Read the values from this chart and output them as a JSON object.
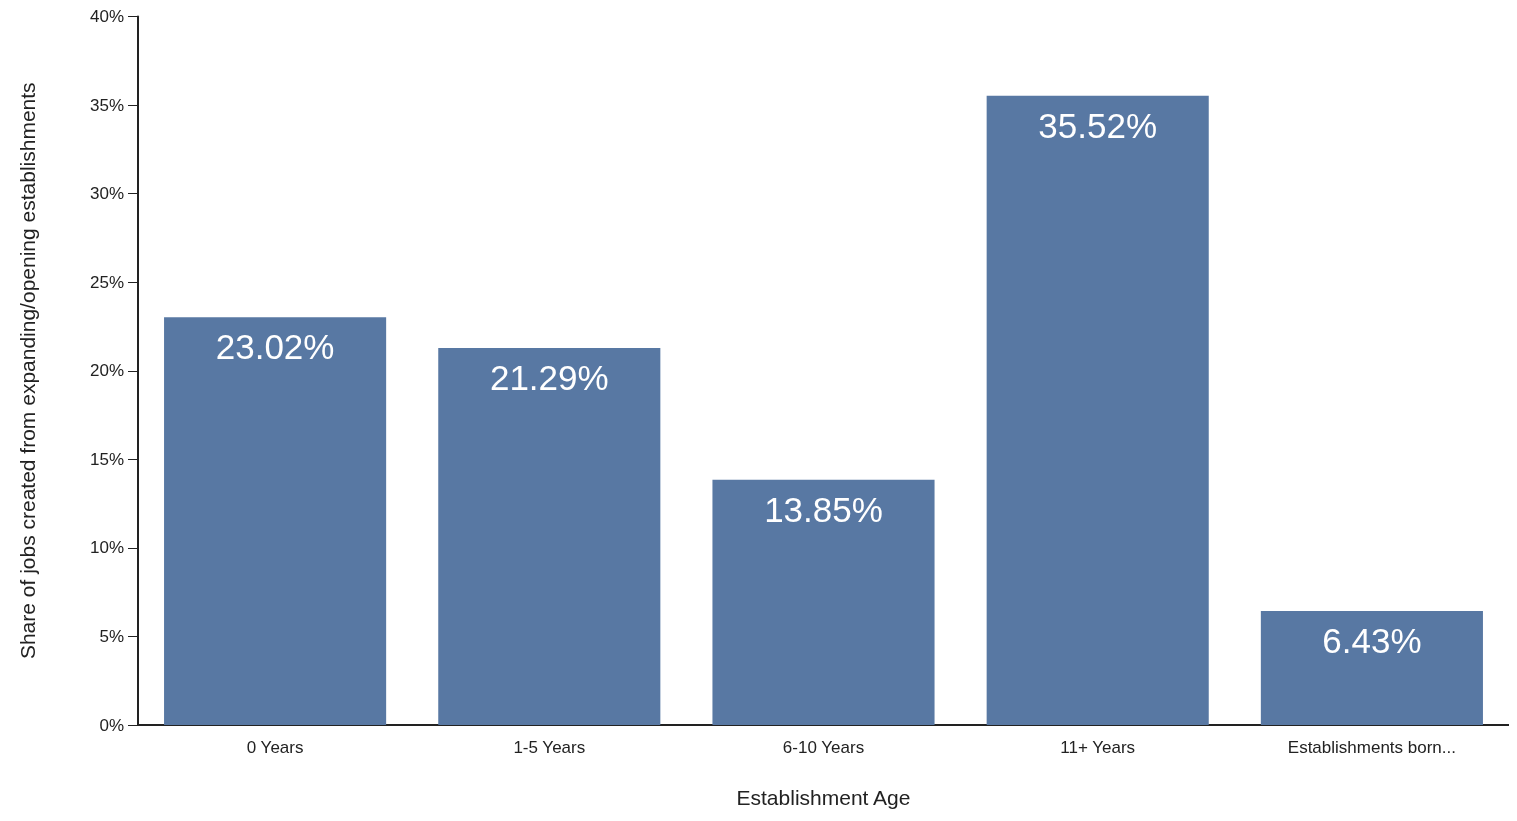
{
  "chart_data": {
    "type": "bar",
    "xlabel": "Establishment Age",
    "ylabel": "Share of jobs created from expanding/opening establishments",
    "categories": [
      "0 Years",
      "1-5 Years",
      "6-10 Years",
      "11+ Years",
      "Establishments born..."
    ],
    "values": [
      23.02,
      21.29,
      13.85,
      35.52,
      6.43
    ],
    "value_labels": [
      "23.02%",
      "21.29%",
      "13.85%",
      "35.52%",
      "6.43%"
    ],
    "color": "#5878a3",
    "ylim": [
      0,
      40
    ],
    "yticks": [
      {
        "value": 0,
        "label": "0%"
      },
      {
        "value": 5,
        "label": "5%"
      },
      {
        "value": 10,
        "label": "10%"
      },
      {
        "value": 15,
        "label": "15%"
      },
      {
        "value": 20,
        "label": "20%"
      },
      {
        "value": 25,
        "label": "25%"
      },
      {
        "value": 30,
        "label": "30%"
      },
      {
        "value": 35,
        "label": "35%"
      },
      {
        "value": 40,
        "label": "40%"
      }
    ],
    "grid": false
  }
}
